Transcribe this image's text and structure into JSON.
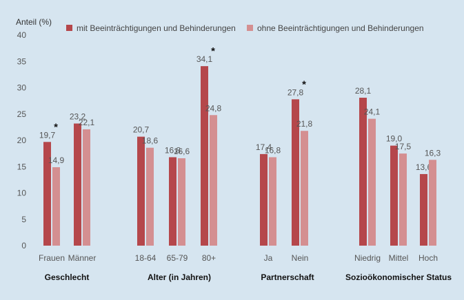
{
  "chart_data": {
    "type": "bar",
    "ylabel": "Anteil (%)",
    "ylim": [
      0,
      40
    ],
    "yticks": [
      0,
      5,
      10,
      15,
      20,
      25,
      30,
      35,
      40
    ],
    "series": [
      {
        "name": "mit Beeinträchtigungen und Behinderungen",
        "color": "#b5474b"
      },
      {
        "name": "ohne Beeinträchtigungen und Behinderungen",
        "color": "#d48f91"
      }
    ],
    "categories": [
      {
        "label": "Frauen",
        "values": [
          19.7,
          14.9
        ],
        "labels": [
          "19,7",
          "14,9"
        ],
        "star": "*"
      },
      {
        "label": "Männer",
        "values": [
          23.2,
          22.1
        ],
        "labels": [
          "23,2",
          "22,1"
        ],
        "star": ""
      },
      {
        "label": "18-64",
        "values": [
          20.7,
          18.6
        ],
        "labels": [
          "20,7",
          "18,6"
        ],
        "star": ""
      },
      {
        "label": "65-79",
        "values": [
          16.8,
          16.6
        ],
        "labels": [
          "16,8",
          "16,6"
        ],
        "star": ""
      },
      {
        "label": "80+",
        "values": [
          34.1,
          24.8
        ],
        "labels": [
          "34,1",
          "24,8"
        ],
        "star": "*"
      },
      {
        "label": "Ja",
        "values": [
          17.4,
          16.8
        ],
        "labels": [
          "17,4",
          "16,8"
        ],
        "star": ""
      },
      {
        "label": "Nein",
        "values": [
          27.8,
          21.8
        ],
        "labels": [
          "27,8",
          "21,8"
        ],
        "star": "*"
      },
      {
        "label": "Niedrig",
        "values": [
          28.1,
          24.1
        ],
        "labels": [
          "28,1",
          "24,1"
        ],
        "star": ""
      },
      {
        "label": "Mittel",
        "values": [
          19.0,
          17.5
        ],
        "labels": [
          "19,0",
          "17,5"
        ],
        "star": ""
      },
      {
        "label": "Hoch",
        "values": [
          13.6,
          16.3
        ],
        "labels": [
          "13,6",
          "16,3"
        ],
        "star": ""
      }
    ],
    "groups": [
      {
        "label": "Geschlecht"
      },
      {
        "label": "Alter (in Jahren)"
      },
      {
        "label": "Partnerschaft"
      },
      {
        "label": "Sozioökonomischer Status"
      }
    ]
  }
}
